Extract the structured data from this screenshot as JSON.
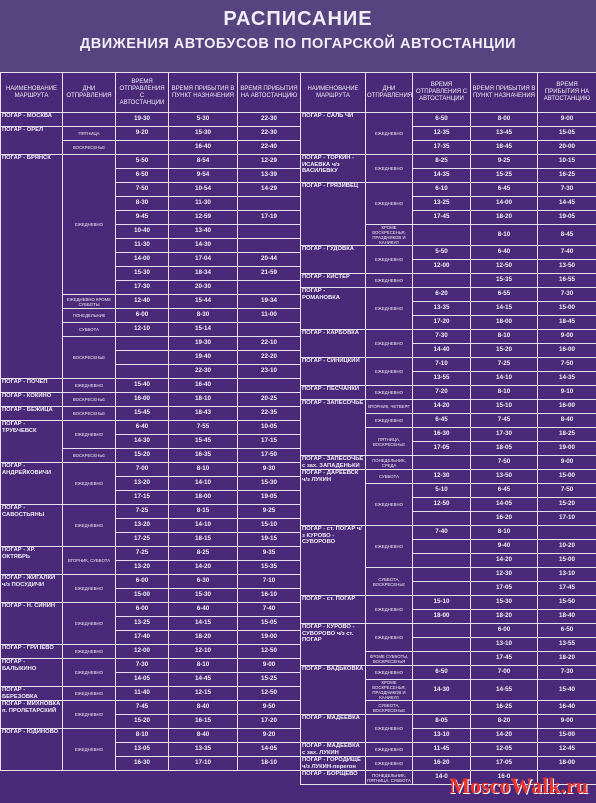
{
  "header": {
    "title": "РАСПИСАНИЕ",
    "subtitle": "ДВИЖЕНИЯ АВТОБУСОВ ПО ПОГАРСКОЙ АВТОСТАНЦИИ"
  },
  "columns": [
    "НАИМЕНОВАНИЕ МАРШРУТА",
    "ДНИ ОТПРАВЛЕНИЯ",
    "ВРЕМЯ ОТПРАВЛЕНИЯ С АВТОСТАНЦИИ",
    "ВРЕМЯ ПРИБЫТИЯ В ПУНКТ НАЗНАЧЕНИЯ",
    "ВРЕМЯ ПРИБЫТИЯ НА АВТОСТАНЦИЮ"
  ],
  "tables": [
    {
      "rows": [
        [
          "ПОГАР - МОСКВА",
          null,
          "19-30",
          "5-30",
          "22-30"
        ],
        [
          "ПОГАР - ОРЕЛ",
          "ПЯТНИЦА",
          "9-20",
          "15-30",
          "22-30"
        ],
        [
          null,
          "ВОСКРЕСЕНЬЕ",
          null,
          "16-40",
          "22-40"
        ],
        [
          "ПОГАР - БРЯНСК",
          "ЕЖЕДНЕВНО",
          "5-50",
          "8-54",
          "12-29"
        ],
        [
          null,
          null,
          "6-50",
          "9-54",
          "13-39"
        ],
        [
          null,
          null,
          "7-50",
          "10-54",
          "14-29"
        ],
        [
          null,
          null,
          "8-30",
          "11-30",
          null
        ],
        [
          null,
          null,
          "9-45",
          "12-59",
          "17-19"
        ],
        [
          null,
          null,
          "10-40",
          "13-40",
          null
        ],
        [
          null,
          null,
          "11-30",
          "14-30",
          null
        ],
        [
          null,
          null,
          "14-00",
          "17-04",
          "20-44"
        ],
        [
          null,
          null,
          "15-30",
          "18-34",
          "21-59"
        ],
        [
          null,
          null,
          "17-30",
          "20-30",
          null
        ],
        [
          null,
          "ЕЖЕДНЕВНО КРОМЕ СУББОТЫ",
          "12-40",
          "15-44",
          "19-34"
        ],
        [
          null,
          "ПОНЕДЕЛЬНИК",
          "6-00",
          "8-30",
          "11-00"
        ],
        [
          null,
          "СУББОТА",
          "12-10",
          "15-14",
          null
        ],
        [
          null,
          "ВОСКРЕСЕНЬЕ",
          null,
          "19-30",
          "22-10"
        ],
        [
          null,
          null,
          null,
          "19-40",
          "22-20"
        ],
        [
          null,
          null,
          null,
          "22-30",
          "23-10"
        ],
        [
          "ПОГАР - ПОЧЕП",
          "ЕЖЕДНЕВНО",
          "15-40",
          "16-40",
          null
        ],
        [
          "ПОГАР - КОКИНО",
          "ВОСКРЕСЕНЬЕ",
          "16-00",
          "18-10",
          "20-25"
        ],
        [
          "ПОГАР - БЕЖИЦА",
          "ВОСКРЕСЕНЬЕ",
          "15-45",
          "18-43",
          "22-35"
        ],
        [
          "ПОГАР - ТРУБЧЕВСК",
          "ЕЖЕДНЕВНО",
          "6-40",
          "7-55",
          "10-05"
        ],
        [
          null,
          null,
          "14-30",
          "15-45",
          "17-15"
        ],
        [
          null,
          "ВОСКРЕСЕНЬЕ",
          "15-20",
          "16-35",
          "17-50"
        ],
        [
          "ПОГАР - АНДРЕЙКОВИЧИ",
          "ЕЖЕДНЕВНО",
          "7-00",
          "8-10",
          "9-30"
        ],
        [
          null,
          null,
          "13-20",
          "14-10",
          "15-30"
        ],
        [
          null,
          null,
          "17-15",
          "18-00",
          "19-05"
        ],
        [
          "ПОГАР - САВОСТЬЯНЫ",
          "ЕЖЕДНЕВНО",
          "7-25",
          "8-15",
          "9-25"
        ],
        [
          null,
          null,
          "13-20",
          "14-10",
          "15-10"
        ],
        [
          null,
          null,
          "17-25",
          "18-15",
          "19-15"
        ],
        [
          "ПОГАР - ХР. ОКТЯБРЬ",
          "ВТОРНИК, СУББОТА",
          "7-25",
          "8-25",
          "9-35"
        ],
        [
          null,
          null,
          "13-20",
          "14-20",
          "15-35"
        ],
        [
          "ПОГАР - ЖИГАЛКИ ч/з ПОСУДИЧИ",
          "ЕЖЕДНЕВНО",
          "6-00",
          "6-30",
          "7-10"
        ],
        [
          null,
          null,
          "15-00",
          "15-30",
          "16-10"
        ],
        [
          "ПОГАР - Н. СИНИН",
          "ЕЖЕДНЕВНО",
          "6-00",
          "6-40",
          "7-40"
        ],
        [
          null,
          null,
          "13-25",
          "14-15",
          "15-05"
        ],
        [
          null,
          null,
          "17-40",
          "18-20",
          "19-00"
        ],
        [
          "ПОГАР - ГРИ IEBO",
          "ЕЖЕДНЕВНО",
          "12-00",
          "12-10",
          "12-50"
        ],
        [
          "ПОГАР - БАЛЫКИНО",
          "ЕЖЕДНЕВНО",
          "7-30",
          "8-10",
          "9-00"
        ],
        [
          null,
          null,
          "14-05",
          "14-45",
          "15-25"
        ],
        [
          "ПОГАР - БЕРЕЗОВКА",
          "ЕЖЕДНЕВНО",
          "11-40",
          "12-15",
          "12-50"
        ],
        [
          "ПОГАР - МИХНОВКА п. ПРОЛЕТАРСКИЙ",
          "ЕЖЕДНЕВНО",
          "7-45",
          "8-40",
          "9-50"
        ],
        [
          null,
          null,
          "15-20",
          "16-15",
          "17-20"
        ],
        [
          "ПОГАР - ЮДИНОВО",
          "ЕЖЕДНЕВНО",
          "8-10",
          "8-40",
          "9-20"
        ],
        [
          null,
          null,
          "13-05",
          "13-35",
          "14-05"
        ],
        [
          null,
          null,
          "16-30",
          "17-10",
          "18-10"
        ]
      ]
    },
    {
      "rows": [
        [
          "ПОГАР - САЛЬ ЧИ",
          "ЕЖЕДНЕВНО",
          "6-50",
          "8-00",
          "9-00"
        ],
        [
          null,
          null,
          "12-35",
          "13-45",
          "15-05"
        ],
        [
          null,
          null,
          "17-35",
          "18-45",
          "20-00"
        ],
        [
          "ПОГАР - ТОРКИН - ИСАЕВКА ч/з ВАСИЛЕВКУ",
          "ЕЖЕДНЕВНО",
          "8-25",
          "9-25",
          "10-15"
        ],
        [
          null,
          null,
          "14-35",
          "15-25",
          "16-25"
        ],
        [
          "ПОГАР - ГРЯЗИВЕЦ",
          "ЕЖЕДНЕВНО",
          "6-10",
          "6-45",
          "7-30"
        ],
        [
          null,
          null,
          "13-25",
          "14-00",
          "14-45"
        ],
        [
          null,
          null,
          "17-45",
          "18-20",
          "19-05"
        ],
        [
          null,
          "КРОМЕ ВОСКРЕСЕНЬЯ, ПРАЗДНИКОВ И КАНИКУЛ",
          null,
          "8-10",
          "8-45"
        ],
        [
          "ПОГАР - ГУДОВКА",
          "ЕЖЕДНЕВНО",
          "5-50",
          "6-40",
          "7-40"
        ],
        [
          null,
          null,
          "12-00",
          "12-50",
          "13-50"
        ],
        [
          "ПОГАР - КИСТЕР",
          "ЕЖЕДНЕВНО",
          null,
          "15-35",
          "16-55"
        ],
        [
          "ПОГАР - РОМАНОВКА",
          "ЕЖЕДНЕВНО",
          "6-20",
          "6-55",
          "7-30"
        ],
        [
          null,
          null,
          "13-35",
          "14-15",
          "15-00"
        ],
        [
          null,
          null,
          "17-20",
          "18-00",
          "18-45"
        ],
        [
          "ПОГАР - КАРБОВКА",
          "ЕЖЕДНЕВНО",
          "7-30",
          "8-10",
          "9-00"
        ],
        [
          null,
          null,
          "14-40",
          "15-20",
          "16-00"
        ],
        [
          "ПОГАР - СИНИЦКИЙ",
          "ЕЖЕДНЕВНО",
          "7-10",
          "7-25",
          "7-50"
        ],
        [
          null,
          null,
          "13-55",
          "14-10",
          "14-35"
        ],
        [
          "ПОГАР - ПЕСЧАНКИ",
          "ЕЖЕДНЕВНО",
          "7-20",
          "8-10",
          "9-10"
        ],
        [
          "ПОГАР - ЗАПЕСОЧЬЕ",
          "ВТОРНИК, ЧЕТВЕРГ",
          "14-20",
          "15-10",
          "16-00"
        ],
        [
          null,
          "ЕЖЕДНЕВНО",
          "6-45",
          "7-45",
          "8-40"
        ],
        [
          null,
          "ПЯТНИЦА, ВОСКРЕСЕНЬЕ",
          "16-30",
          "17-30",
          "18-25"
        ],
        [
          null,
          null,
          "17-05",
          "18-05",
          "19-00"
        ],
        [
          "ПОГАР - ЗАПЕСОЧЬЕ с зах. ЗАПАДЕНЬКИ",
          "ПОНЕДЕЛЬНИК, СРЕДА",
          null,
          "7-50",
          "9-00"
        ],
        [
          "ПОГАР - ДАРЕЕВСК ч/з ЛУКИН",
          "СУББОТА",
          "12-30",
          "13-50",
          "15-00"
        ],
        [
          null,
          "ЕЖЕДНЕВНО",
          "5-10",
          "6-45",
          "7-50"
        ],
        [
          null,
          null,
          "12-50",
          "14-05",
          "15-20"
        ],
        [
          null,
          null,
          null,
          "16-20",
          "17-10"
        ],
        [
          "ПОГАР - ст. ПОГАР ч/з КУРОВО - СУВОРОВО",
          "ЕЖЕДНЕВНО",
          "7-40",
          "8-10",
          null
        ],
        [
          null,
          null,
          null,
          "9-40",
          "10-20"
        ],
        [
          null,
          null,
          null,
          "14-20",
          "15-00"
        ],
        [
          null,
          "СУББОТА, ВОСКРЕСЕНЬЕ",
          null,
          "12-30",
          "13-10"
        ],
        [
          null,
          null,
          null,
          "17-05",
          "17-45"
        ],
        [
          "ПОГАР - ст. ПОГАР",
          "ЕЖЕДНЕВНО",
          "15-10",
          "15-30",
          "15-50"
        ],
        [
          null,
          null,
          "18-00",
          "18-20",
          "18-40"
        ],
        [
          "ПОГАР - КУРОВО - СУВОРОВО ч/з ст. ПОГАР",
          "ЕЖЕДНЕВНО",
          null,
          "6-00",
          "6-50"
        ],
        [
          null,
          null,
          null,
          "13-10",
          "13-55"
        ],
        [
          null,
          "КРОМЕ СУББОТЫ, ВОСКРЕСЕНЬЯ",
          null,
          "17-45",
          "18-20"
        ],
        [
          "ПОГАР - ВАДЬКОВКА",
          "ЕЖЕДНЕВНО",
          "6-50",
          "7-00",
          "7-30"
        ],
        [
          null,
          "КРОМЕ ВОСКРЕСЕНЬЯ, ПРАЗДНИКОВ И КАНИКУЛ",
          "14-30",
          "14-55",
          "15-40"
        ],
        [
          null,
          "СУББОТА, ВОСКРЕСЕНЬЕ",
          null,
          "16-25",
          "16-40"
        ],
        [
          "ПОГАР - МАДЕЕВКА",
          "ЕЖЕДНЕВНО",
          "8-05",
          "8-20",
          "9-00"
        ],
        [
          null,
          null,
          "13-10",
          "14-20",
          "15-00"
        ],
        [
          "ПОГАР - МАДЕЕВКА с зах. ЛУКИН",
          "ЕЖЕДНЕВНО",
          "11-45",
          "12-05",
          "12-45"
        ],
        [
          "ПОГАР - ГОРОДИЩЕ ч/з ЛУКИН-перегон",
          "ЕЖЕДНЕВНО",
          "16-20",
          "17-05",
          "18-00"
        ],
        [
          "ПОГАР - БОРЩЕВО",
          "ПОНЕДЕЛЬНИК, ПЯТНИЦА, СУББОТА",
          "14-0",
          "16-0",
          null
        ]
      ]
    }
  ],
  "watermark": "MoscoWalk.ru"
}
